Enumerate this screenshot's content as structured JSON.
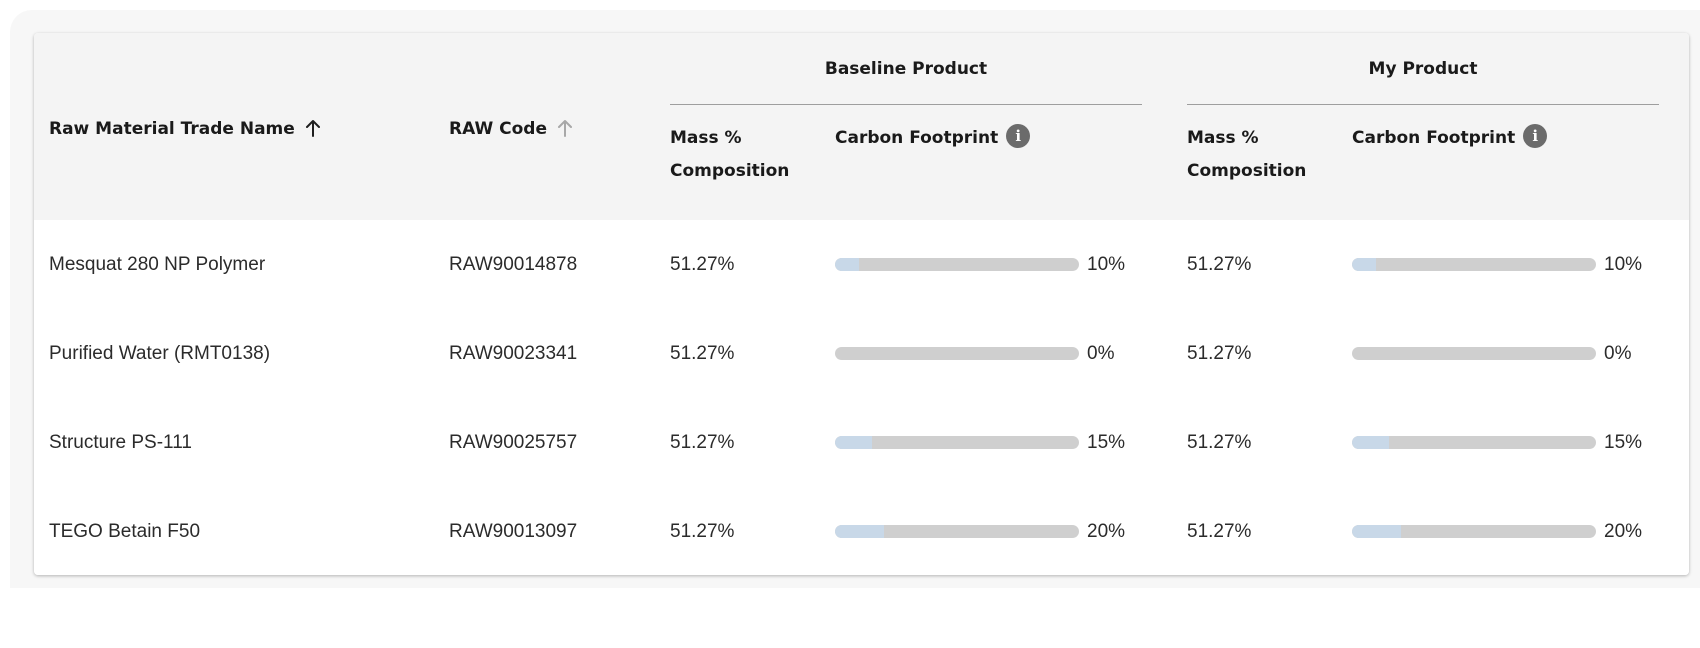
{
  "table": {
    "columns": {
      "trade_name": "Raw Material Trade Name",
      "raw_code": "RAW Code",
      "mass_composition": "Mass % Composition",
      "carbon_footprint": "Carbon Footprint"
    },
    "groups": {
      "baseline": "Baseline Product",
      "mine": "My Product"
    },
    "sort": {
      "trade_name": "ascending-active",
      "raw_code": "ascending-inactive"
    },
    "rows": [
      {
        "name": "Mesquat 280 NP Polymer",
        "code": "RAW90014878",
        "baseline_mass": "51.27%",
        "baseline_cf": 10,
        "baseline_cf_label": "10%",
        "my_mass": "51.27%",
        "my_cf": 10,
        "my_cf_label": "10%"
      },
      {
        "name": "Purified Water (RMT0138)",
        "code": "RAW90023341",
        "baseline_mass": "51.27%",
        "baseline_cf": 0,
        "baseline_cf_label": "0%",
        "my_mass": "51.27%",
        "my_cf": 0,
        "my_cf_label": "0%"
      },
      {
        "name": "Structure PS-111",
        "code": "RAW90025757",
        "baseline_mass": "51.27%",
        "baseline_cf": 15,
        "baseline_cf_label": "15%",
        "my_mass": "51.27%",
        "my_cf": 15,
        "my_cf_label": "15%"
      },
      {
        "name": "TEGO Betain F50",
        "code": "RAW90013097",
        "baseline_mass": "51.27%",
        "baseline_cf": 20,
        "baseline_cf_label": "20%",
        "my_mass": "51.27%",
        "my_cf": 20,
        "my_cf_label": "20%"
      }
    ]
  },
  "colors": {
    "bar_track": "#cfcfcf",
    "bar_fill": "#c8d8e8",
    "header_bg": "#f4f4f4",
    "info_icon": "#6b6b6b"
  },
  "icons": {
    "sort_active": "arrow-up-icon",
    "sort_inactive": "arrow-up-icon",
    "info": "info-icon"
  }
}
